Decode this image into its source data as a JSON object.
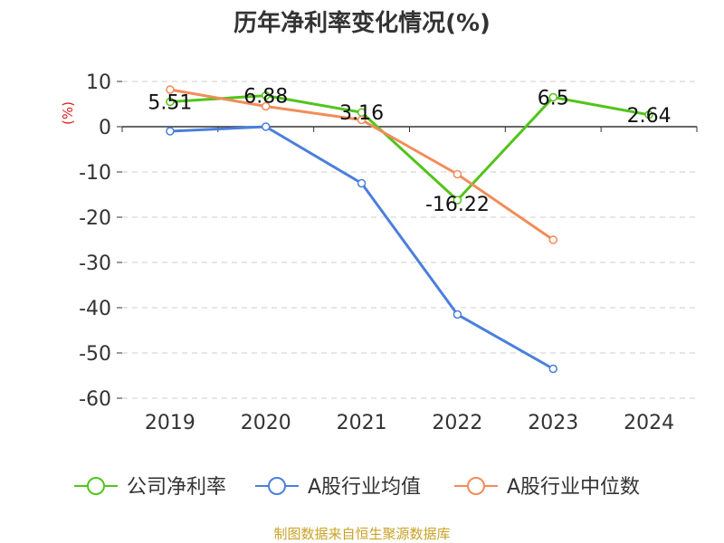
{
  "chart_data": {
    "type": "line",
    "title": "历年净利率变化情况(%)",
    "y_unit_label": "(%)",
    "categories": [
      "2019",
      "2020",
      "2021",
      "2022",
      "2023",
      "2024"
    ],
    "ylim": [
      -60,
      10
    ],
    "yticks": [
      10,
      0,
      -10,
      -20,
      -30,
      -40,
      -50,
      -60
    ],
    "grid": true,
    "legend_position": "bottom",
    "series": [
      {
        "name": "公司净利率",
        "color": "#52c41a",
        "values": [
          5.51,
          6.88,
          3.16,
          -16.22,
          6.5,
          2.64
        ],
        "labels": [
          "5.51",
          "6.88",
          "3.16",
          "-16.22",
          "6.5",
          "2.64"
        ]
      },
      {
        "name": "A股行业均值",
        "color": "#4a7fdc",
        "values": [
          -1.0,
          0.0,
          -12.5,
          -41.5,
          -53.5,
          null
        ]
      },
      {
        "name": "A股行业中位数",
        "color": "#f28c5a",
        "values": [
          8.2,
          4.5,
          1.5,
          -10.5,
          -25.0,
          null
        ]
      }
    ]
  },
  "source_text": "制图数据来自恒生聚源数据库"
}
